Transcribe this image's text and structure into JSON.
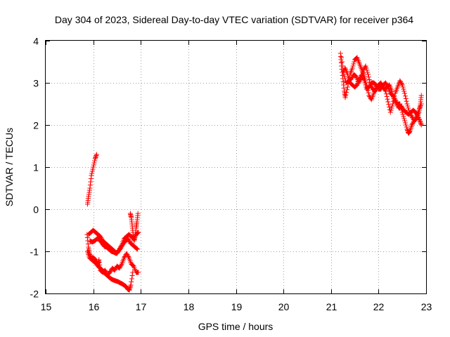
{
  "chart_data": {
    "type": "scatter",
    "title": "Day 304 of 2023, Sidereal Day-to-day VTEC variation (SDTVAR) for receiver p364",
    "xlabel": "GPS time / hours",
    "ylabel": "SDTVAR / TECUs",
    "xlim": [
      15,
      23
    ],
    "ylim": [
      -2,
      4
    ],
    "x_ticks": [
      15,
      16,
      17,
      18,
      19,
      20,
      21,
      22,
      23
    ],
    "y_ticks": [
      -2,
      -1,
      0,
      1,
      2,
      3,
      4
    ],
    "x_tick_labels": [
      "15",
      "16",
      "17",
      "18",
      "19",
      "20",
      "21",
      "22",
      "23"
    ],
    "y_tick_labels": [
      "-2",
      "-1",
      "0",
      "1",
      "2",
      "3",
      "4"
    ],
    "grid": true,
    "marker": "+",
    "color": "#ff0000",
    "series": [
      {
        "name": "SDTVAR",
        "tracks": [
          [
            [
              15.88,
              0.12
            ],
            [
              15.9,
              0.3
            ],
            [
              15.93,
              0.5
            ],
            [
              15.96,
              0.8
            ],
            [
              16.0,
              1.0
            ],
            [
              16.04,
              1.2
            ],
            [
              16.07,
              1.3
            ]
          ],
          [
            [
              15.87,
              -0.6
            ],
            [
              15.9,
              -0.9
            ],
            [
              15.92,
              -1.05
            ],
            [
              15.96,
              -1.15
            ],
            [
              16.0,
              -1.15
            ],
            [
              16.05,
              -1.2
            ],
            [
              16.1,
              -1.3
            ],
            [
              16.12,
              -1.2
            ],
            [
              16.15,
              -1.45
            ],
            [
              16.2,
              -1.5
            ],
            [
              16.25,
              -1.45
            ],
            [
              16.3,
              -1.55
            ],
            [
              16.35,
              -1.5
            ],
            [
              16.4,
              -1.4
            ],
            [
              16.45,
              -1.45
            ],
            [
              16.5,
              -1.35
            ],
            [
              16.55,
              -1.4
            ],
            [
              16.6,
              -1.3
            ],
            [
              16.65,
              -1.15
            ],
            [
              16.7,
              -1.05
            ],
            [
              16.75,
              -1.15
            ],
            [
              16.8,
              -1.3
            ],
            [
              16.85,
              -1.35
            ],
            [
              16.9,
              -1.5
            ],
            [
              16.95,
              -1.5
            ]
          ],
          [
            [
              15.88,
              -1.0
            ],
            [
              15.92,
              -1.15
            ],
            [
              15.97,
              -1.2
            ],
            [
              16.02,
              -1.25
            ],
            [
              16.07,
              -1.3
            ],
            [
              16.12,
              -1.38
            ],
            [
              16.17,
              -1.42
            ],
            [
              16.22,
              -1.5
            ],
            [
              16.27,
              -1.55
            ],
            [
              16.32,
              -1.6
            ],
            [
              16.37,
              -1.65
            ],
            [
              16.42,
              -1.68
            ],
            [
              16.47,
              -1.7
            ],
            [
              16.52,
              -1.72
            ],
            [
              16.57,
              -1.75
            ],
            [
              16.62,
              -1.78
            ],
            [
              16.67,
              -1.82
            ],
            [
              16.7,
              -1.85
            ],
            [
              16.73,
              -1.9
            ],
            [
              16.76,
              -1.92
            ],
            [
              16.79,
              -1.8
            ],
            [
              16.83,
              -1.5
            ]
          ],
          [
            [
              15.9,
              -0.6
            ],
            [
              15.95,
              -0.55
            ],
            [
              16.0,
              -0.5
            ],
            [
              16.05,
              -0.55
            ],
            [
              16.1,
              -0.6
            ],
            [
              16.15,
              -0.65
            ],
            [
              16.2,
              -0.75
            ],
            [
              16.25,
              -0.8
            ],
            [
              16.3,
              -0.85
            ],
            [
              16.35,
              -0.9
            ],
            [
              16.4,
              -0.95
            ],
            [
              16.45,
              -1.0
            ],
            [
              16.5,
              -1.05
            ],
            [
              16.55,
              -0.95
            ],
            [
              16.6,
              -0.85
            ],
            [
              16.65,
              -0.7
            ],
            [
              16.7,
              -0.65
            ],
            [
              16.75,
              -0.6
            ],
            [
              16.8,
              -0.65
            ],
            [
              16.85,
              -0.7
            ],
            [
              16.9,
              -0.6
            ],
            [
              16.95,
              -0.55
            ]
          ],
          [
            [
              15.93,
              -0.75
            ],
            [
              15.98,
              -0.78
            ],
            [
              16.03,
              -0.75
            ],
            [
              16.08,
              -0.7
            ],
            [
              16.13,
              -0.72
            ],
            [
              16.18,
              -0.8
            ],
            [
              16.23,
              -0.88
            ],
            [
              16.28,
              -0.9
            ],
            [
              16.33,
              -0.95
            ],
            [
              16.38,
              -1.0
            ],
            [
              16.43,
              -1.02
            ],
            [
              16.48,
              -1.05
            ],
            [
              16.53,
              -1.0
            ],
            [
              16.58,
              -0.92
            ],
            [
              16.63,
              -0.82
            ],
            [
              16.68,
              -0.75
            ],
            [
              16.73,
              -0.7
            ],
            [
              16.78,
              -0.8
            ],
            [
              16.83,
              -0.85
            ],
            [
              16.88,
              -0.9
            ],
            [
              16.93,
              -0.95
            ]
          ],
          [
            [
              16.78,
              -0.1
            ],
            [
              16.8,
              -0.2
            ],
            [
              16.82,
              -0.4
            ],
            [
              16.84,
              -0.6
            ],
            [
              16.86,
              -0.75
            ],
            [
              16.88,
              -0.65
            ],
            [
              16.9,
              -0.45
            ],
            [
              16.92,
              -0.3
            ],
            [
              16.94,
              -0.1
            ]
          ],
          [
            [
              21.2,
              3.7
            ],
            [
              21.22,
              3.4
            ],
            [
              21.25,
              3.1
            ],
            [
              21.28,
              2.8
            ],
            [
              21.3,
              2.65
            ],
            [
              21.35,
              2.9
            ],
            [
              21.4,
              3.2
            ],
            [
              21.45,
              3.35
            ],
            [
              21.5,
              3.55
            ],
            [
              21.55,
              3.6
            ],
            [
              21.6,
              3.45
            ],
            [
              21.65,
              3.3
            ],
            [
              21.7,
              3.15
            ],
            [
              21.75,
              2.95
            ],
            [
              21.8,
              2.7
            ],
            [
              21.85,
              2.6
            ],
            [
              21.9,
              2.75
            ],
            [
              21.95,
              2.9
            ],
            [
              22.0,
              2.95
            ],
            [
              22.05,
              3.0
            ],
            [
              22.1,
              2.9
            ],
            [
              22.15,
              2.8
            ],
            [
              22.2,
              2.55
            ],
            [
              22.25,
              2.3
            ],
            [
              22.3,
              2.5
            ],
            [
              22.35,
              2.75
            ],
            [
              22.4,
              2.9
            ],
            [
              22.45,
              3.05
            ],
            [
              22.5,
              2.95
            ],
            [
              22.55,
              2.75
            ],
            [
              22.6,
              2.5
            ],
            [
              22.65,
              2.3
            ],
            [
              22.7,
              2.2
            ],
            [
              22.75,
              2.1
            ],
            [
              22.8,
              2.15
            ],
            [
              22.85,
              2.3
            ],
            [
              22.88,
              2.5
            ],
            [
              22.9,
              2.7
            ]
          ],
          [
            [
              21.22,
              3.6
            ],
            [
              21.27,
              3.2
            ],
            [
              21.32,
              3.0
            ],
            [
              21.38,
              3.05
            ],
            [
              21.43,
              3.1
            ],
            [
              21.48,
              3.2
            ],
            [
              21.53,
              3.15
            ],
            [
              21.58,
              3.0
            ],
            [
              21.63,
              3.1
            ],
            [
              21.68,
              3.3
            ],
            [
              21.73,
              3.4
            ],
            [
              21.78,
              3.2
            ],
            [
              21.83,
              2.95
            ],
            [
              21.88,
              2.85
            ],
            [
              21.93,
              2.8
            ],
            [
              21.98,
              2.9
            ],
            [
              22.03,
              2.95
            ],
            [
              22.08,
              2.9
            ],
            [
              22.13,
              2.85
            ],
            [
              22.18,
              2.9
            ],
            [
              22.23,
              2.95
            ],
            [
              22.28,
              2.8
            ],
            [
              22.33,
              2.6
            ],
            [
              22.38,
              2.5
            ],
            [
              22.43,
              2.4
            ],
            [
              22.48,
              2.45
            ],
            [
              22.53,
              2.35
            ],
            [
              22.58,
              2.3
            ],
            [
              22.63,
              2.25
            ],
            [
              22.68,
              2.3
            ],
            [
              22.73,
              2.35
            ],
            [
              22.78,
              2.3
            ],
            [
              22.83,
              2.2
            ],
            [
              22.87,
              2.1
            ],
            [
              22.9,
              2.0
            ]
          ],
          [
            [
              21.25,
              3.25
            ],
            [
              21.3,
              3.35
            ],
            [
              21.35,
              3.2
            ],
            [
              21.4,
              3.0
            ],
            [
              21.45,
              2.95
            ],
            [
              21.5,
              2.9
            ],
            [
              21.55,
              2.95
            ],
            [
              21.6,
              3.1
            ],
            [
              21.65,
              3.2
            ],
            [
              21.7,
              3.05
            ],
            [
              21.75,
              2.85
            ],
            [
              21.8,
              2.9
            ],
            [
              21.85,
              3.0
            ],
            [
              21.9,
              3.0
            ],
            [
              21.95,
              2.95
            ],
            [
              22.0,
              2.85
            ],
            [
              22.05,
              2.85
            ],
            [
              22.1,
              2.95
            ],
            [
              22.15,
              3.0
            ],
            [
              22.2,
              2.9
            ],
            [
              22.25,
              2.75
            ],
            [
              22.3,
              2.7
            ],
            [
              22.35,
              2.6
            ],
            [
              22.4,
              2.5
            ],
            [
              22.45,
              2.5
            ],
            [
              22.5,
              2.3
            ],
            [
              22.55,
              2.1
            ],
            [
              22.6,
              1.9
            ],
            [
              22.63,
              1.8
            ],
            [
              22.66,
              1.85
            ],
            [
              22.7,
              2.0
            ],
            [
              22.75,
              2.1
            ],
            [
              22.8,
              2.2
            ],
            [
              22.85,
              2.35
            ],
            [
              22.9,
              2.5
            ]
          ]
        ]
      }
    ]
  }
}
